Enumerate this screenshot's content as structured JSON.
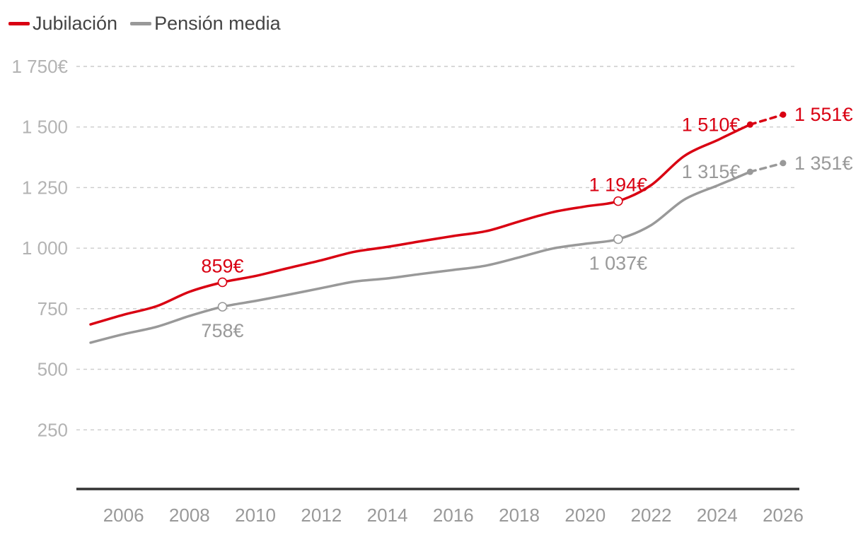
{
  "chart_data": {
    "type": "line",
    "title": "",
    "xlabel": "",
    "ylabel": "",
    "ylim": [
      0,
      1750
    ],
    "xlim": [
      2005,
      2026.3
    ],
    "grid": true,
    "legend": "top-left",
    "y_ticks": [
      {
        "value": 250,
        "label": "250"
      },
      {
        "value": 500,
        "label": "500"
      },
      {
        "value": 750,
        "label": "750"
      },
      {
        "value": 1000,
        "label": "1 000"
      },
      {
        "value": 1250,
        "label": "1 250"
      },
      {
        "value": 1500,
        "label": "1 500"
      },
      {
        "value": 1750,
        "label": "1 750€"
      }
    ],
    "x_ticks": [
      {
        "value": 2006,
        "label": "2006"
      },
      {
        "value": 2008,
        "label": "2008"
      },
      {
        "value": 2010,
        "label": "2010"
      },
      {
        "value": 2012,
        "label": "2012"
      },
      {
        "value": 2014,
        "label": "2014"
      },
      {
        "value": 2016,
        "label": "2016"
      },
      {
        "value": 2018,
        "label": "2018"
      },
      {
        "value": 2020,
        "label": "2020"
      },
      {
        "value": 2022,
        "label": "2022"
      },
      {
        "value": 2024,
        "label": "2024"
      },
      {
        "value": 2026,
        "label": "2026"
      }
    ],
    "series": [
      {
        "name": "Jubilación",
        "color": "#d90012",
        "x": [
          2005,
          2006,
          2007,
          2008,
          2009,
          2010,
          2011,
          2012,
          2013,
          2014,
          2015,
          2016,
          2017,
          2018,
          2019,
          2020,
          2021,
          2022,
          2023,
          2024,
          2024.5,
          2025
        ],
        "y": [
          685,
          725,
          760,
          820,
          859,
          885,
          918,
          950,
          985,
          1005,
          1028,
          1050,
          1070,
          1110,
          1148,
          1172,
          1194,
          1260,
          1380,
          1445,
          1478,
          1510
        ],
        "projection": {
          "x": [
            2025,
            2026
          ],
          "y": [
            1510,
            1551
          ]
        },
        "annotations": [
          {
            "x": 2009,
            "y": 859,
            "label": "859€",
            "marker": "open",
            "position": "above"
          },
          {
            "x": 2021,
            "y": 1194,
            "label": "1 194€",
            "marker": "open",
            "position": "above"
          },
          {
            "x": 2025,
            "y": 1510,
            "label": "1 510€",
            "marker": "filled",
            "position": "left"
          },
          {
            "x": 2026,
            "y": 1551,
            "label": "1 551€",
            "marker": "filled",
            "position": "right"
          }
        ]
      },
      {
        "name": "Pensión media",
        "color": "#999999",
        "x": [
          2005,
          2006,
          2007,
          2008,
          2009,
          2010,
          2011,
          2012,
          2013,
          2014,
          2015,
          2016,
          2017,
          2018,
          2019,
          2020,
          2021,
          2022,
          2023,
          2024,
          2024.5,
          2025
        ],
        "y": [
          610,
          645,
          675,
          720,
          758,
          782,
          808,
          835,
          862,
          875,
          893,
          910,
          928,
          962,
          998,
          1018,
          1037,
          1095,
          1200,
          1258,
          1286,
          1315
        ],
        "projection": {
          "x": [
            2025,
            2026
          ],
          "y": [
            1315,
            1351
          ]
        },
        "annotations": [
          {
            "x": 2009,
            "y": 758,
            "label": "758€",
            "marker": "open",
            "position": "below"
          },
          {
            "x": 2021,
            "y": 1037,
            "label": "1 037€",
            "marker": "open",
            "position": "below"
          },
          {
            "x": 2025,
            "y": 1315,
            "label": "1 315€",
            "marker": "filled",
            "position": "left"
          },
          {
            "x": 2026,
            "y": 1351,
            "label": "1 351€",
            "marker": "filled",
            "position": "right"
          }
        ]
      }
    ]
  }
}
